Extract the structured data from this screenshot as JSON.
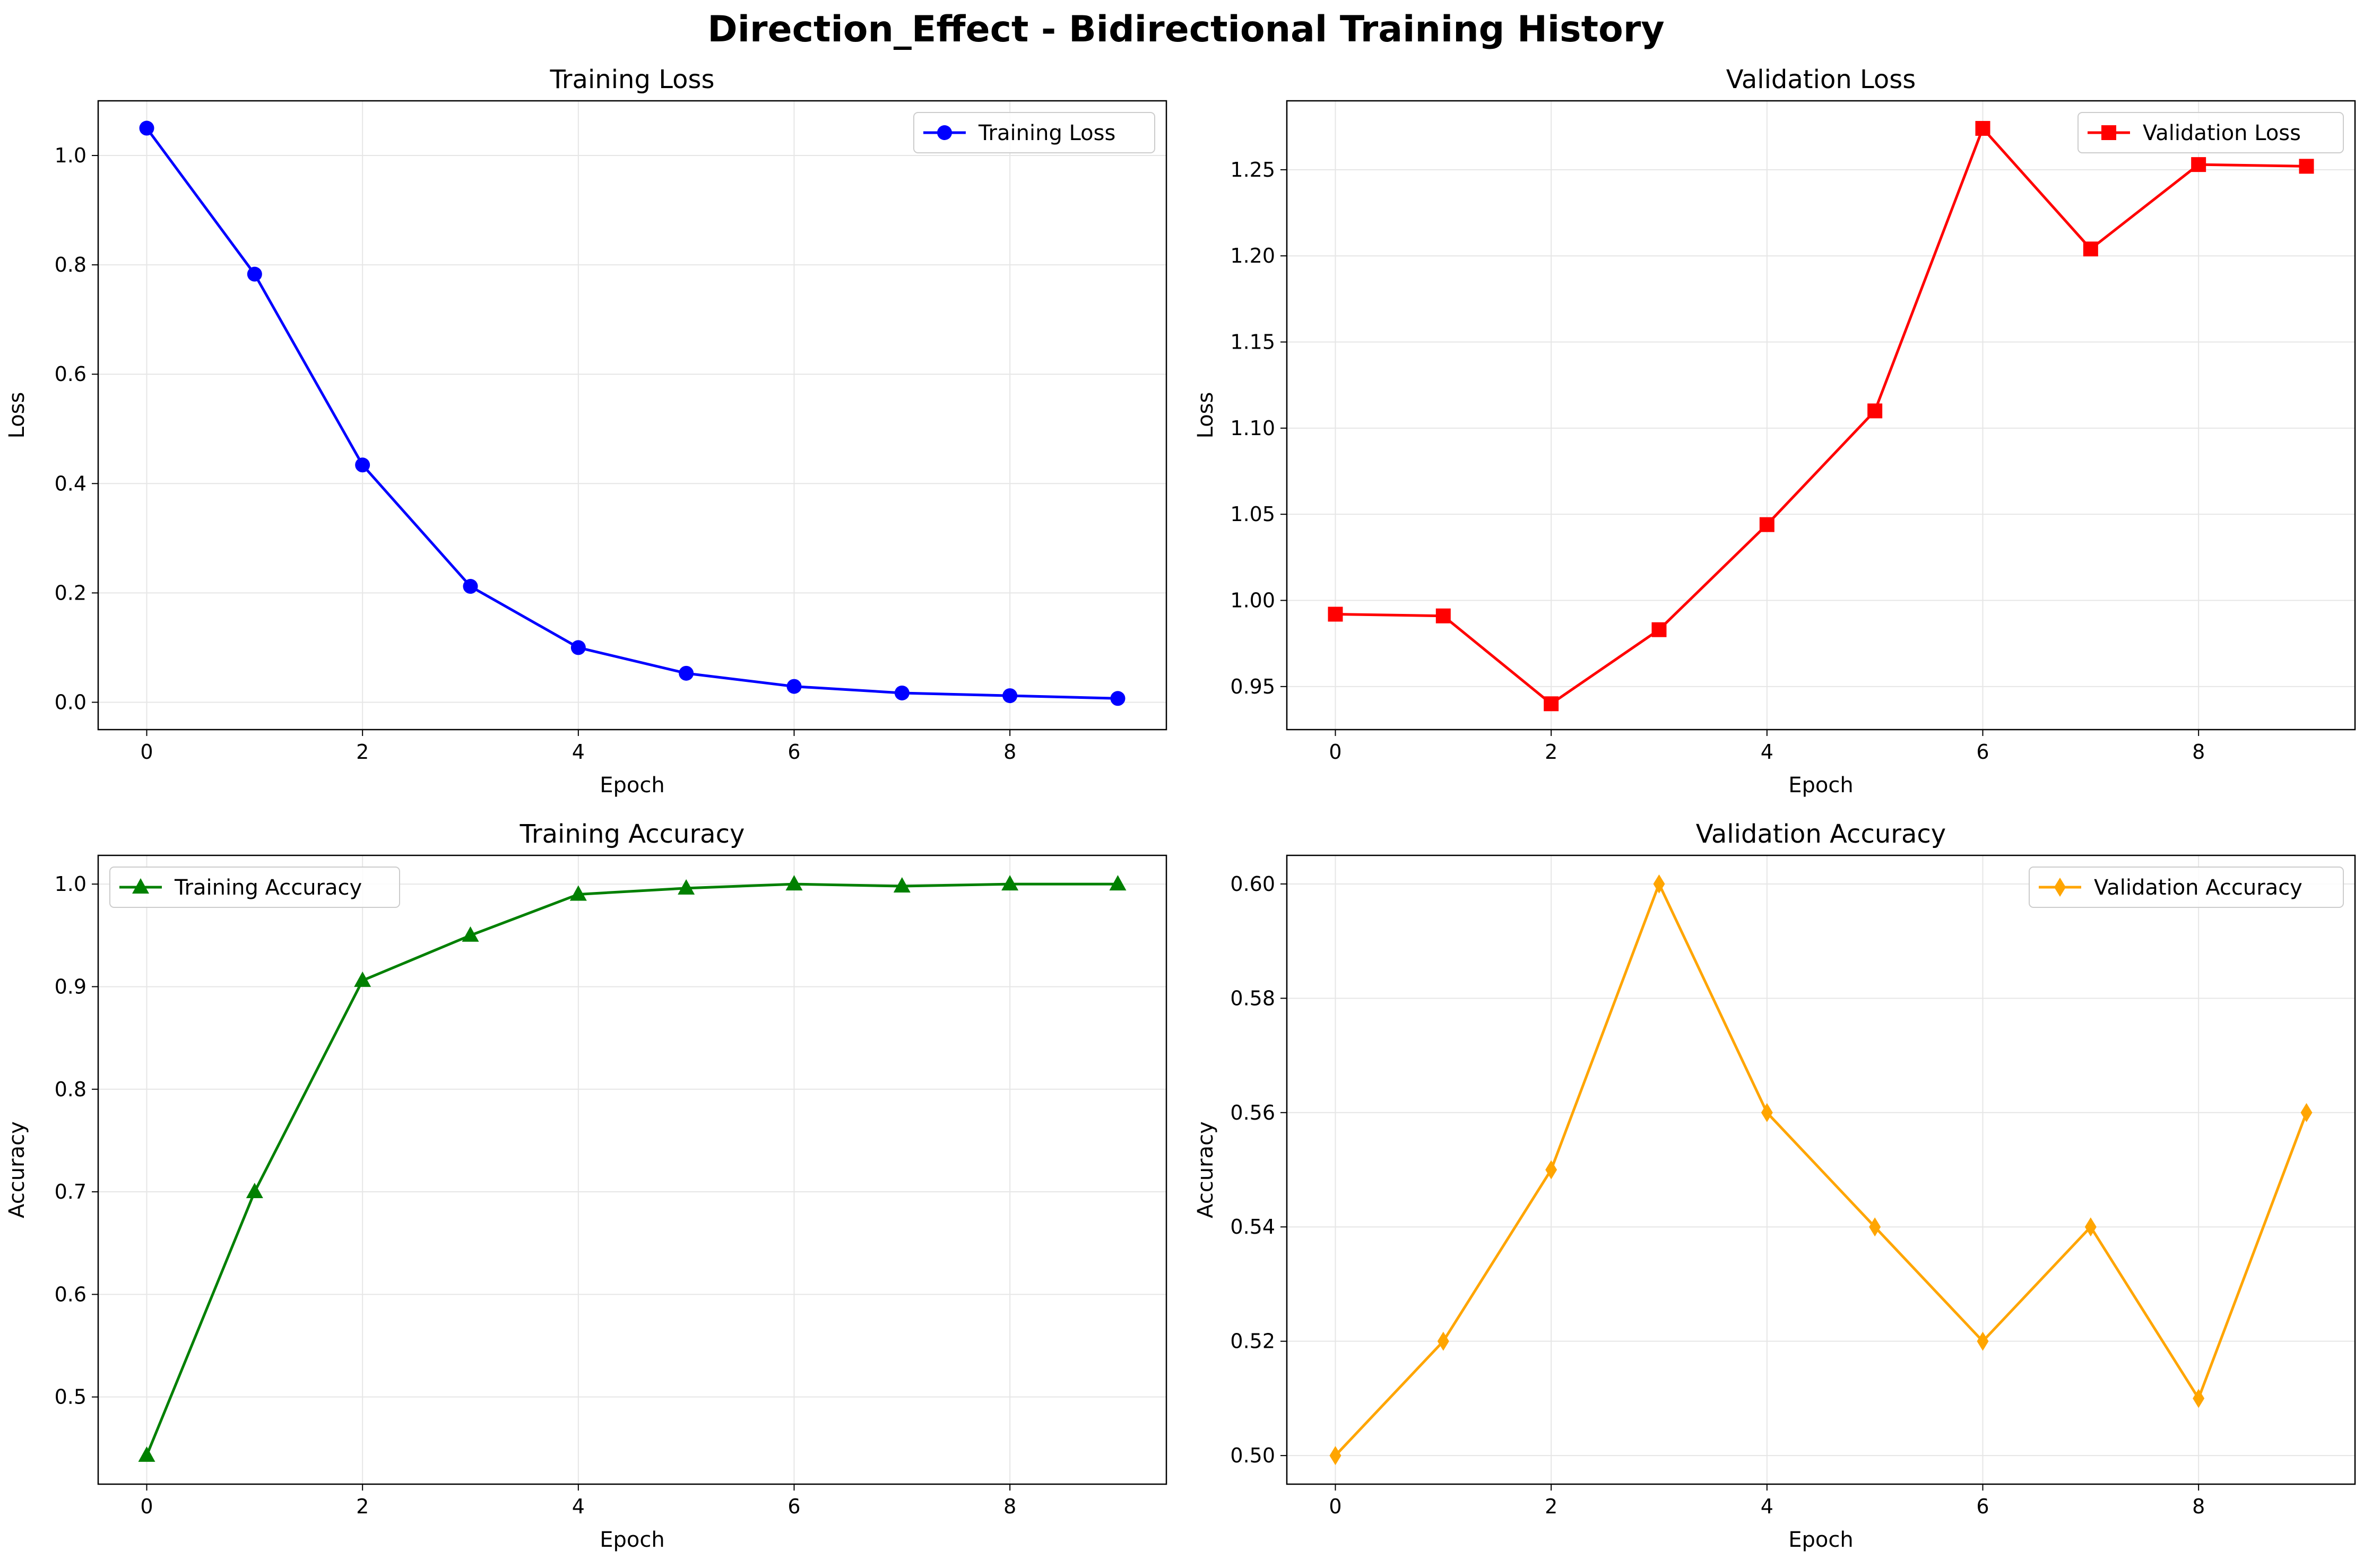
{
  "figure": {
    "title": "Direction_Effect - Bidirectional Training History"
  },
  "chart_data": [
    {
      "type": "line",
      "title": "Training Loss",
      "xlabel": "Epoch",
      "ylabel": "Loss",
      "xlim": [
        -0.45,
        9.45
      ],
      "ylim": [
        -0.05,
        1.1
      ],
      "xticks": [
        0,
        2,
        4,
        6,
        8
      ],
      "yticks": [
        0.0,
        0.2,
        0.4,
        0.6,
        0.8,
        1.0
      ],
      "ytick_labels": [
        "0.0",
        "0.2",
        "0.4",
        "0.6",
        "0.8",
        "1.0"
      ],
      "grid": true,
      "legend": "upper right",
      "x": [
        0,
        1,
        2,
        3,
        4,
        5,
        6,
        7,
        8,
        9
      ],
      "series": [
        {
          "name": "Training Loss",
          "color": "#0000ff",
          "marker": "circle",
          "values": [
            1.05,
            0.783,
            0.434,
            0.212,
            0.1,
            0.053,
            0.029,
            0.017,
            0.012,
            0.007
          ]
        }
      ]
    },
    {
      "type": "line",
      "title": "Validation Loss",
      "xlabel": "Epoch",
      "ylabel": "Loss",
      "xlim": [
        -0.45,
        9.45
      ],
      "ylim": [
        0.925,
        1.29
      ],
      "xticks": [
        0,
        2,
        4,
        6,
        8
      ],
      "yticks": [
        0.95,
        1.0,
        1.05,
        1.1,
        1.15,
        1.2,
        1.25
      ],
      "ytick_labels": [
        "0.95",
        "1.00",
        "1.05",
        "1.10",
        "1.15",
        "1.20",
        "1.25"
      ],
      "grid": true,
      "legend": "upper right",
      "x": [
        0,
        1,
        2,
        3,
        4,
        5,
        6,
        7,
        8,
        9
      ],
      "series": [
        {
          "name": "Validation Loss",
          "color": "#ff0000",
          "marker": "square",
          "values": [
            0.992,
            0.991,
            0.94,
            0.983,
            1.044,
            1.11,
            1.274,
            1.204,
            1.253,
            1.252
          ]
        }
      ]
    },
    {
      "type": "line",
      "title": "Training Accuracy",
      "xlabel": "Epoch",
      "ylabel": "Accuracy",
      "xlim": [
        -0.45,
        9.45
      ],
      "ylim": [
        0.415,
        1.028
      ],
      "xticks": [
        0,
        2,
        4,
        6,
        8
      ],
      "yticks": [
        0.5,
        0.6,
        0.7,
        0.8,
        0.9,
        1.0
      ],
      "ytick_labels": [
        "0.5",
        "0.6",
        "0.7",
        "0.8",
        "0.9",
        "1.0"
      ],
      "grid": true,
      "legend": "upper left",
      "x": [
        0,
        1,
        2,
        3,
        4,
        5,
        6,
        7,
        8,
        9
      ],
      "series": [
        {
          "name": "Training Accuracy",
          "color": "#008000",
          "marker": "triangle",
          "values": [
            0.443,
            0.7,
            0.906,
            0.95,
            0.99,
            0.996,
            1.0,
            0.998,
            1.0,
            1.0
          ]
        }
      ]
    },
    {
      "type": "line",
      "title": "Validation Accuracy",
      "xlabel": "Epoch",
      "ylabel": "Accuracy",
      "xlim": [
        -0.45,
        9.45
      ],
      "ylim": [
        0.495,
        0.605
      ],
      "xticks": [
        0,
        2,
        4,
        6,
        8
      ],
      "yticks": [
        0.5,
        0.52,
        0.54,
        0.56,
        0.58,
        0.6
      ],
      "ytick_labels": [
        "0.50",
        "0.52",
        "0.54",
        "0.56",
        "0.58",
        "0.60"
      ],
      "grid": true,
      "legend": "upper right",
      "x": [
        0,
        1,
        2,
        3,
        4,
        5,
        6,
        7,
        8,
        9
      ],
      "series": [
        {
          "name": "Validation Accuracy",
          "color": "#ffa500",
          "marker": "diamond",
          "values": [
            0.5,
            0.52,
            0.55,
            0.6,
            0.56,
            0.54,
            0.52,
            0.54,
            0.51,
            0.56
          ]
        }
      ]
    }
  ]
}
